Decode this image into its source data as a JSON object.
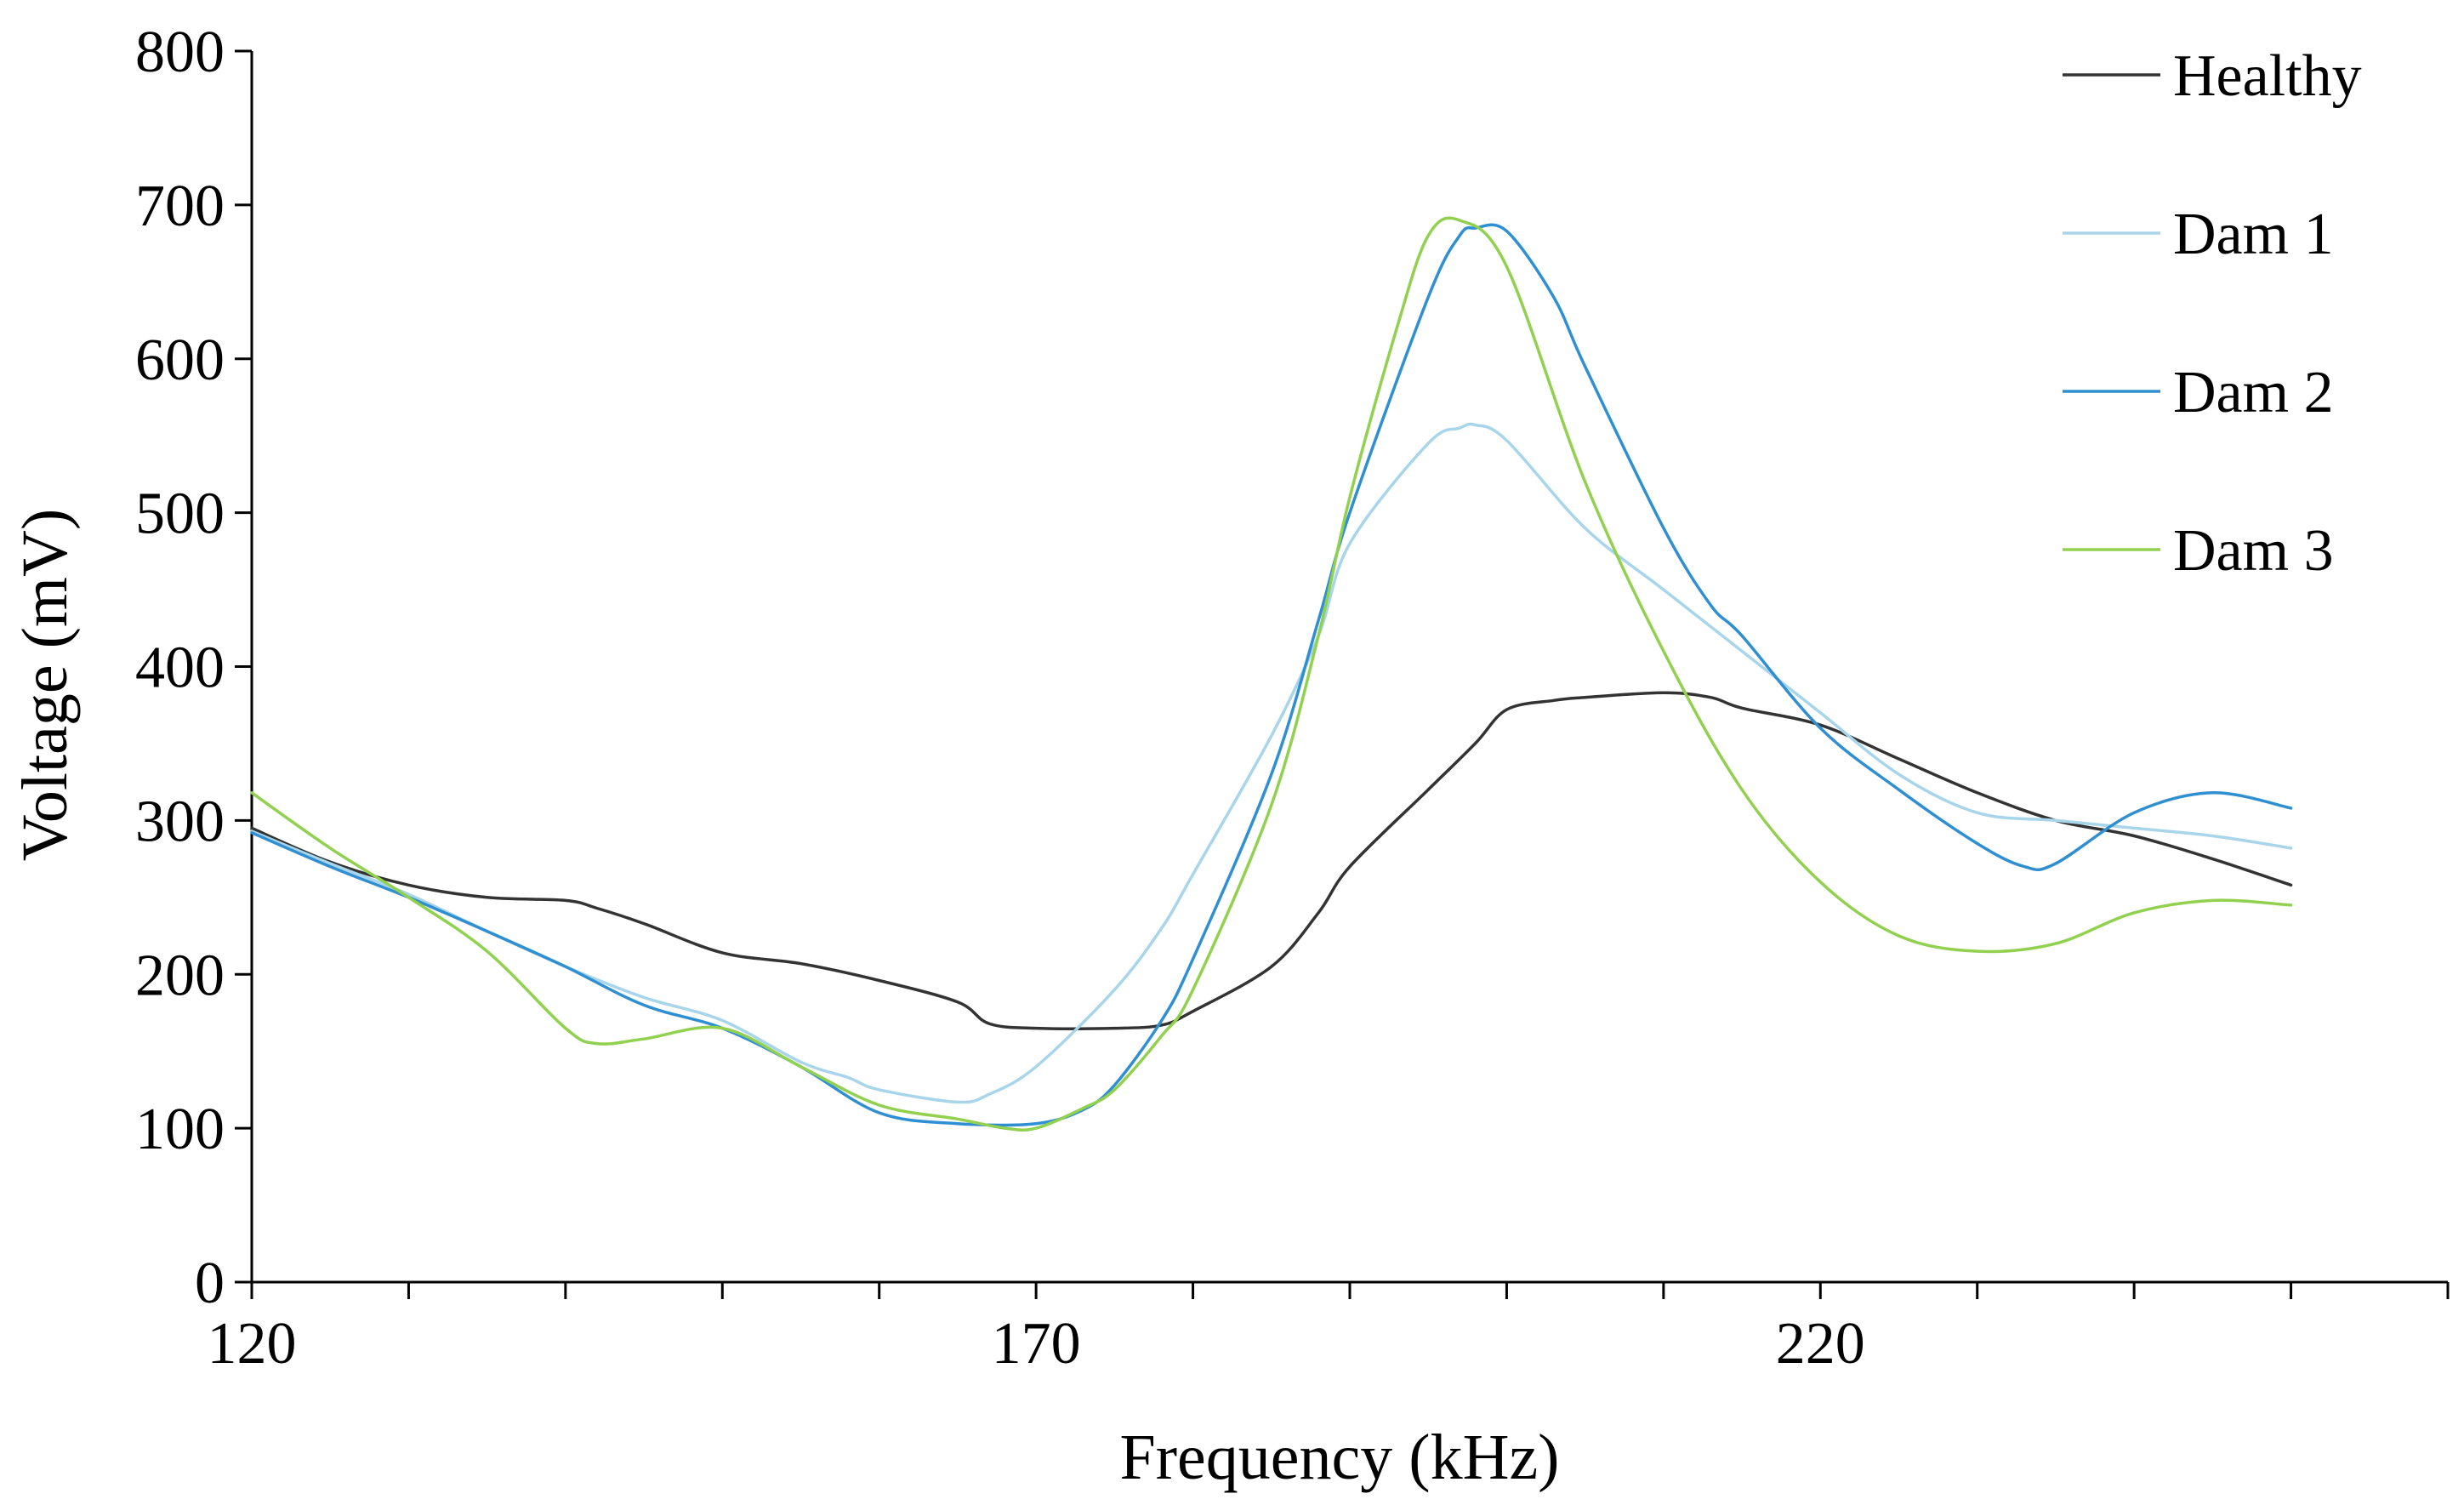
{
  "chart_data": {
    "type": "line",
    "title": "",
    "xlabel": "Frequency (kHz)",
    "ylabel": "Voltage (mV)",
    "xlim": [
      120,
      260
    ],
    "ylim": [
      0,
      800
    ],
    "x_ticks": [
      "120",
      "170",
      "220"
    ],
    "y_ticks": [
      "0",
      "100",
      "200",
      "300",
      "400",
      "500",
      "600",
      "700",
      "800"
    ],
    "legend_position": "top-right",
    "grid": false,
    "series": [
      {
        "name": "Healthy",
        "color": "#333333",
        "x": [
          120,
          125,
          130,
          135,
          140,
          142,
          145,
          150,
          155,
          160,
          165,
          167,
          170,
          175,
          178,
          180,
          185,
          188,
          190,
          195,
          198,
          200,
          203,
          205,
          210,
          213,
          215,
          220,
          225,
          230,
          235,
          240,
          245,
          250
        ],
        "y": [
          295,
          273,
          258,
          250,
          248,
          243,
          233,
          214,
          207,
          196,
          182,
          168,
          165,
          165,
          167,
          176,
          205,
          240,
          270,
          320,
          350,
          372,
          378,
          380,
          383,
          380,
          373,
          362,
          340,
          318,
          300,
          290,
          275,
          258
        ]
      },
      {
        "name": "Dam 1",
        "color": "#a9d5ea",
        "x": [
          120,
          125,
          130,
          135,
          140,
          145,
          150,
          155,
          158,
          160,
          165,
          167,
          170,
          175,
          178,
          180,
          185,
          188,
          190,
          195,
          197,
          198,
          200,
          205,
          210,
          215,
          220,
          225,
          230,
          235,
          240,
          245,
          250
        ],
        "y": [
          293,
          272,
          252,
          228,
          205,
          185,
          170,
          143,
          133,
          125,
          117,
          122,
          140,
          190,
          230,
          265,
          355,
          420,
          480,
          545,
          555,
          557,
          547,
          490,
          450,
          410,
          370,
          330,
          305,
          300,
          295,
          290,
          282
        ]
      },
      {
        "name": "Dam 2",
        "color": "#2f8fd1",
        "x": [
          120,
          125,
          130,
          135,
          140,
          145,
          150,
          155,
          160,
          165,
          170,
          173,
          175,
          178,
          180,
          185,
          188,
          190,
          195,
          197,
          198,
          200,
          203,
          205,
          210,
          213,
          215,
          220,
          225,
          230,
          233,
          235,
          240,
          245,
          250
        ],
        "y": [
          292,
          270,
          250,
          228,
          205,
          180,
          165,
          140,
          110,
          103,
          103,
          112,
          128,
          170,
          210,
          330,
          430,
          500,
          640,
          680,
          685,
          683,
          640,
          595,
          490,
          440,
          420,
          360,
          320,
          285,
          270,
          272,
          305,
          318,
          308
        ]
      },
      {
        "name": "Dam 3",
        "color": "#92d050",
        "x": [
          120,
          125,
          130,
          135,
          140,
          142,
          145,
          150,
          155,
          160,
          165,
          168,
          170,
          173,
          175,
          178,
          180,
          185,
          188,
          190,
          193,
          195,
          197,
          200,
          205,
          210,
          215,
          220,
          225,
          230,
          235,
          240,
          245,
          250
        ],
        "y": [
          318,
          282,
          250,
          215,
          165,
          155,
          158,
          165,
          140,
          115,
          106,
          100,
          100,
          113,
          125,
          160,
          190,
          310,
          420,
          510,
          620,
          680,
          690,
          660,
          520,
          410,
          320,
          260,
          225,
          215,
          220,
          240,
          248,
          245
        ]
      }
    ]
  }
}
